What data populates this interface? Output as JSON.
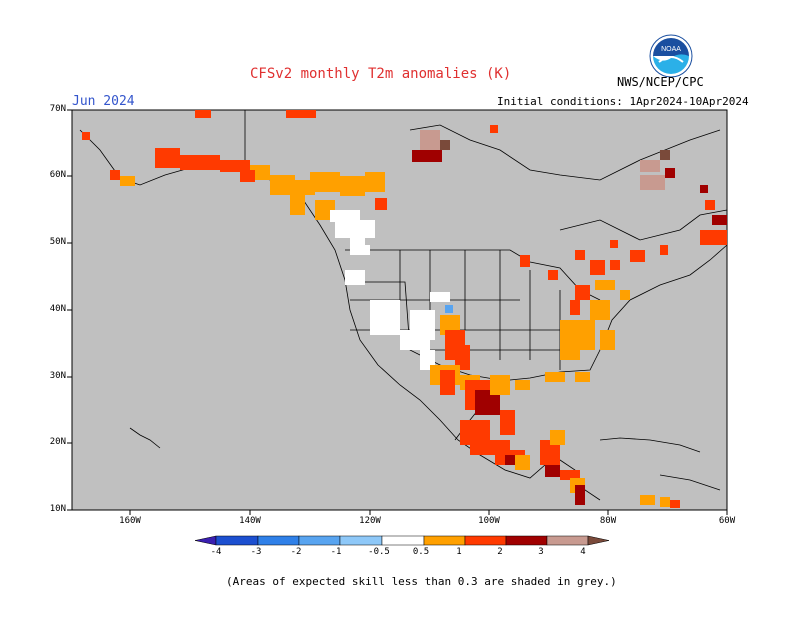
{
  "title": "CFSv2 monthly T2m anomalies (K)",
  "month": "Jun 2024",
  "initial_conditions": "Initial conditions: 1Apr2024-10Apr2024",
  "agency": "NWS/NCEP/CPC",
  "logo_text": "NOAA",
  "footnote": "(Areas of expected skill less than 0.3 are shaded in grey.)",
  "lat_labels": [
    "70N",
    "60N",
    "50N",
    "40N",
    "30N",
    "20N",
    "10N"
  ],
  "lon_labels": [
    "160W",
    "140W",
    "120W",
    "100W",
    "80W",
    "60W"
  ],
  "colorbar": {
    "labels": [
      "-4",
      "-3",
      "-2",
      "-1",
      "-0.5",
      "0.5",
      "1",
      "2",
      "3",
      "4"
    ],
    "colors": [
      "#3a1fb0",
      "#1c4fd0",
      "#2f80e8",
      "#58a4f0",
      "#8ec8f8",
      "#ffffff",
      "#ffa000",
      "#ff3a00",
      "#a00000",
      "#c89a90",
      "#7a4a3a"
    ]
  },
  "colors": {
    "land_ocean_grey": "#c0c0c0",
    "title_red": "#e03030",
    "month_blue": "#3355cc"
  }
}
